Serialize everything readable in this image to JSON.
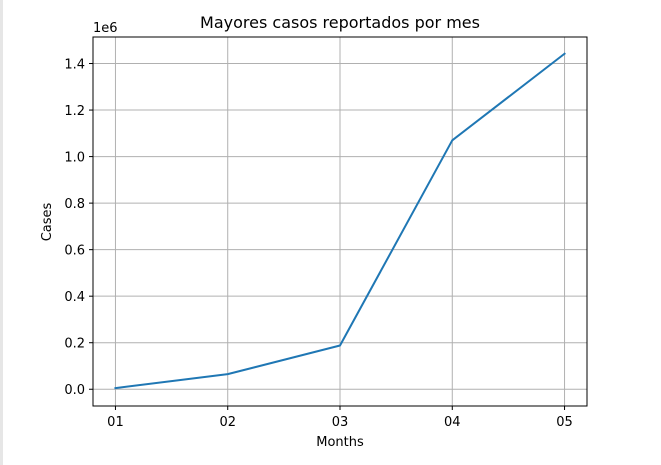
{
  "chart_data": {
    "type": "line",
    "title": "Mayores casos reportados por mes",
    "xlabel": "Months",
    "ylabel": "Cases",
    "y_scale_label": "1e6",
    "categories": [
      "01",
      "02",
      "03",
      "04",
      "05"
    ],
    "series": [
      {
        "values": [
          5000,
          65000,
          188000,
          1070000,
          1442000
        ]
      }
    ],
    "y_ticks": [
      "0.0",
      "0.2",
      "0.4",
      "0.6",
      "0.8",
      "1.0",
      "1.2",
      "1.4"
    ],
    "ylim": [
      -72000,
      1514000
    ],
    "grid": true,
    "colors": {
      "line": "#1f77b4",
      "grid": "#b0b0b0",
      "axes": "#000000"
    }
  }
}
